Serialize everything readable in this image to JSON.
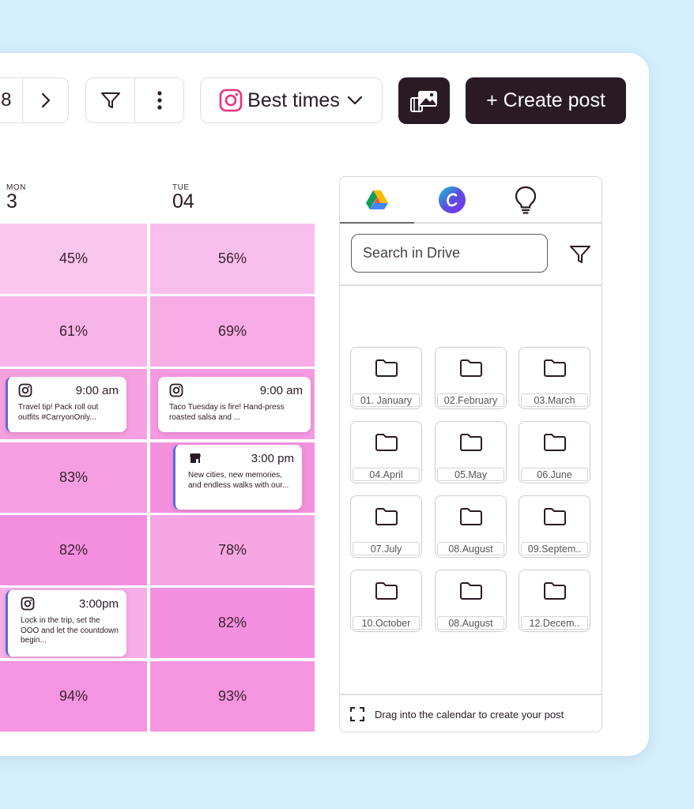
{
  "toolbar": {
    "date_partial": "8",
    "best_times_label": "Best times",
    "create_post_label": "+ Create post",
    "icons": [
      "chevron-right-icon",
      "filter-icon",
      "more-vertical-icon",
      "instagram-icon",
      "chevron-down-icon",
      "media-library-icon"
    ]
  },
  "calendar": {
    "days": [
      {
        "dow": "MON",
        "num": "3"
      },
      {
        "dow": "TUE",
        "num": "04"
      }
    ],
    "mon": {
      "r1": "45%",
      "r2": "61%",
      "r4": "83%",
      "r5": "82%",
      "r7": "94%",
      "post1": {
        "time": "9:00 am",
        "text": "Travel tip! Pack roll out outfits  #CarryonOnly..."
      },
      "post2": {
        "time": "3:00pm",
        "text": "Lock in the trip, set the OOO and let the countdown begin..."
      }
    },
    "tue": {
      "r1": "56%",
      "r2": "69%",
      "r5": "78%",
      "r6": "82%",
      "r7": "93%",
      "post1": {
        "time": "9:00 am",
        "text": "Taco Tuesday is fire! Hand-press roasted salsa and ..."
      },
      "post2": {
        "time": "3:00 pm",
        "text": "New cities, new memories, and endless walks with our..."
      }
    },
    "colors": {
      "light": "#f9c0ea",
      "mid": "#f7a6e4",
      "deep": "#f48ee0"
    }
  },
  "drive": {
    "tabs": [
      "google-drive-icon",
      "canva-icon",
      "lightbulb-icon"
    ],
    "search_placeholder": "Search in Drive",
    "folders": [
      "01. January",
      "02.February",
      "03.March",
      "04.April",
      "05.May",
      "06.June",
      "07.July",
      "08.August",
      "09.Septem..",
      "10.October",
      "08.August",
      "12.Decem.."
    ],
    "footer": "Drag into the calendar to create your post"
  }
}
